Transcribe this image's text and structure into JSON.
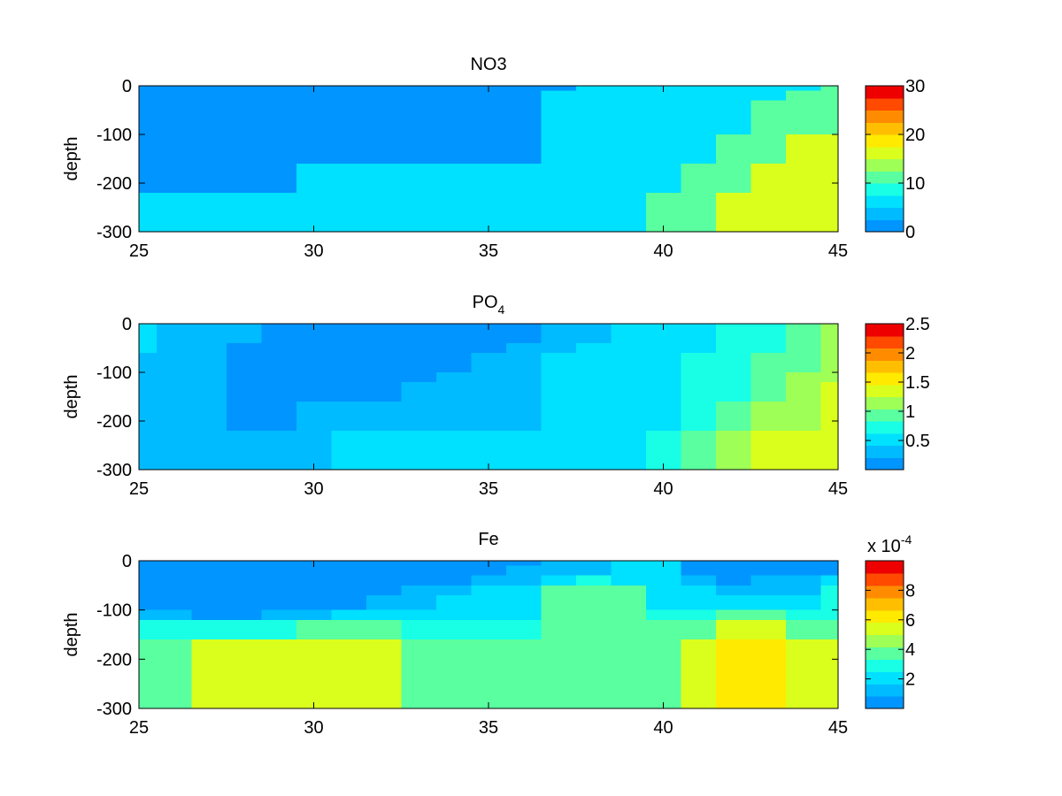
{
  "chart_data": [
    {
      "type": "heatmap",
      "title": "NO3",
      "ylabel": "depth",
      "xlabel": "",
      "xlim": [
        25,
        45
      ],
      "ylim": [
        -300,
        0
      ],
      "x_ticks": [
        25,
        30,
        35,
        40,
        45
      ],
      "y_ticks": [
        0,
        -100,
        -200,
        -300
      ],
      "x_edges": [
        25,
        25.5,
        26.5,
        27.5,
        28.5,
        29.5,
        30.5,
        31.5,
        32.5,
        33.5,
        34.5,
        35.5,
        36.5,
        37.5,
        38.5,
        39.5,
        40.5,
        41.5,
        42.5,
        43.5,
        44.5,
        45
      ],
      "y_edges": [
        0,
        -10,
        -30,
        -60,
        -100,
        -120,
        -160,
        -200,
        -220,
        -300
      ],
      "colorbar": {
        "min": 0,
        "max": 30,
        "levels": 12,
        "ticks": [
          0,
          10,
          20,
          30
        ],
        "tick_labels": [
          "0",
          "10",
          "20",
          "30"
        ],
        "scale_label": ""
      },
      "z": [
        [
          2,
          2,
          2,
          2,
          2,
          2,
          2,
          2,
          2,
          2,
          2,
          2,
          2,
          5,
          5,
          5,
          5,
          5,
          7,
          7,
          10
        ],
        [
          2,
          2,
          2,
          2,
          2,
          2,
          2,
          2,
          2,
          2,
          2,
          2,
          5,
          7,
          7,
          7,
          7,
          7,
          7,
          10,
          12
        ],
        [
          2,
          2,
          2,
          2,
          2,
          2,
          2,
          2,
          2,
          2,
          2,
          2,
          5,
          7,
          7,
          7,
          7,
          7,
          10,
          10,
          12
        ],
        [
          2,
          2,
          2,
          2,
          2,
          2,
          2,
          2,
          2,
          2,
          2,
          2,
          5,
          7,
          7,
          7,
          7,
          7,
          10,
          12,
          12
        ],
        [
          2,
          2,
          2,
          2,
          2,
          2,
          2,
          2,
          2,
          2,
          2,
          2,
          5,
          7,
          7,
          7,
          7,
          10,
          12,
          15,
          15
        ],
        [
          2,
          2,
          2,
          2,
          2,
          2,
          2,
          2,
          2,
          2,
          2,
          2,
          5,
          7,
          7,
          7,
          7,
          10,
          12,
          15,
          15
        ],
        [
          2,
          2,
          2,
          2,
          2,
          5,
          5,
          5,
          5,
          5,
          5,
          5,
          5,
          7,
          7,
          7,
          10,
          12,
          15,
          15,
          15
        ],
        [
          2,
          2,
          2,
          2,
          2,
          5,
          5,
          5,
          5,
          5,
          5,
          5,
          5,
          7,
          7,
          7,
          10,
          12,
          15,
          15,
          15
        ],
        [
          5,
          5,
          5,
          5,
          5,
          5,
          5,
          7,
          7,
          7,
          7,
          7,
          7,
          7,
          7,
          10,
          12,
          15,
          17,
          17,
          17
        ]
      ]
    },
    {
      "type": "heatmap",
      "title": "PO",
      "title_sub": "4",
      "ylabel": "depth",
      "xlabel": "",
      "xlim": [
        25,
        45
      ],
      "ylim": [
        -300,
        0
      ],
      "x_ticks": [
        25,
        30,
        35,
        40,
        45
      ],
      "y_ticks": [
        0,
        -100,
        -200,
        -300
      ],
      "x_edges": [
        25,
        25.5,
        26.5,
        27.5,
        28.5,
        29.5,
        30.5,
        31.5,
        32.5,
        33.5,
        34.5,
        35.5,
        36.5,
        37.5,
        38.5,
        39.5,
        40.5,
        41.5,
        42.5,
        43.5,
        44.5,
        45
      ],
      "y_edges": [
        0,
        -20,
        -40,
        -60,
        -100,
        -120,
        -160,
        -180,
        -220,
        -300
      ],
      "colorbar": {
        "min": 0,
        "max": 2.5,
        "levels": 12,
        "ticks": [
          0.5,
          1,
          1.5,
          2,
          2.5
        ],
        "tick_labels": [
          "0.5",
          "1",
          "1.5",
          "2",
          "2.5"
        ],
        "scale_label": ""
      },
      "z": [
        [
          0.6,
          0.4,
          0.4,
          0.4,
          0.15,
          0.15,
          0.15,
          0.15,
          0.15,
          0.15,
          0.15,
          0.15,
          0.4,
          0.4,
          0.6,
          0.6,
          0.6,
          0.8,
          0.8,
          1.0,
          1.2
        ],
        [
          0.6,
          0.4,
          0.4,
          0.4,
          0.15,
          0.15,
          0.15,
          0.15,
          0.15,
          0.15,
          0.15,
          0.15,
          0.4,
          0.4,
          0.6,
          0.6,
          0.6,
          0.8,
          0.8,
          1.0,
          1.2
        ],
        [
          0.6,
          0.4,
          0.4,
          0.15,
          0.15,
          0.15,
          0.15,
          0.15,
          0.15,
          0.15,
          0.15,
          0.4,
          0.4,
          0.6,
          0.6,
          0.6,
          0.6,
          0.8,
          0.8,
          1.0,
          1.2
        ],
        [
          0.4,
          0.4,
          0.4,
          0.15,
          0.15,
          0.15,
          0.15,
          0.15,
          0.15,
          0.15,
          0.4,
          0.4,
          0.6,
          0.6,
          0.6,
          0.6,
          0.8,
          0.8,
          1.0,
          1.0,
          1.2
        ],
        [
          0.4,
          0.4,
          0.4,
          0.15,
          0.15,
          0.15,
          0.15,
          0.15,
          0.15,
          0.4,
          0.4,
          0.4,
          0.6,
          0.6,
          0.6,
          0.6,
          0.8,
          0.8,
          1.0,
          1.2,
          1.2
        ],
        [
          0.4,
          0.4,
          0.4,
          0.15,
          0.15,
          0.15,
          0.15,
          0.15,
          0.4,
          0.4,
          0.4,
          0.4,
          0.6,
          0.6,
          0.6,
          0.6,
          0.8,
          0.8,
          1.0,
          1.2,
          1.4
        ],
        [
          0.4,
          0.4,
          0.4,
          0.15,
          0.15,
          0.4,
          0.4,
          0.4,
          0.4,
          0.4,
          0.4,
          0.4,
          0.6,
          0.6,
          0.6,
          0.6,
          0.8,
          1.0,
          1.2,
          1.2,
          1.4
        ],
        [
          0.4,
          0.4,
          0.4,
          0.15,
          0.15,
          0.4,
          0.4,
          0.4,
          0.4,
          0.4,
          0.4,
          0.4,
          0.6,
          0.6,
          0.6,
          0.6,
          0.8,
          1.0,
          1.2,
          1.2,
          1.4
        ],
        [
          0.4,
          0.4,
          0.4,
          0.4,
          0.4,
          0.4,
          0.6,
          0.6,
          0.6,
          0.6,
          0.6,
          0.6,
          0.6,
          0.6,
          0.6,
          0.8,
          1.0,
          1.2,
          1.4,
          1.4,
          1.4
        ]
      ]
    },
    {
      "type": "heatmap",
      "title": "Fe",
      "ylabel": "depth",
      "xlabel": "",
      "xlim": [
        25,
        45
      ],
      "ylim": [
        -300,
        0
      ],
      "x_ticks": [
        25,
        30,
        35,
        40,
        45
      ],
      "y_ticks": [
        0,
        -100,
        -200,
        -300
      ],
      "x_edges": [
        25,
        26.5,
        27.5,
        28.5,
        29.5,
        30.5,
        31.5,
        32.5,
        33.5,
        34.5,
        35.5,
        36.5,
        37.5,
        38.5,
        39.5,
        40.5,
        41.5,
        42.5,
        43.5,
        44.5,
        45
      ],
      "y_edges": [
        0,
        -10,
        -30,
        -50,
        -70,
        -100,
        -120,
        -160,
        -220,
        -300
      ],
      "colorbar": {
        "min": 0,
        "max": 10,
        "levels": 12,
        "ticks": [
          2,
          4,
          6,
          8
        ],
        "tick_labels": [
          "2",
          "4",
          "6",
          "8"
        ],
        "scale_label": "x 10",
        "scale_exp": "-4"
      },
      "z": [
        [
          0.5,
          0.5,
          0.5,
          0.5,
          0.5,
          0.5,
          0.5,
          0.5,
          0.5,
          0.5,
          0.5,
          1.5,
          1.5,
          2.2,
          2.2,
          0.5,
          0.5,
          0.5,
          0.5,
          0.5
        ],
        [
          0.5,
          0.5,
          0.5,
          0.5,
          0.5,
          0.5,
          0.5,
          0.5,
          0.5,
          0.5,
          1.5,
          1.5,
          1.5,
          2.2,
          2.2,
          0.5,
          0.5,
          0.5,
          0.5,
          0.5
        ],
        [
          0.5,
          0.5,
          0.5,
          0.5,
          0.5,
          0.5,
          0.5,
          0.5,
          0.5,
          1.5,
          1.5,
          2.2,
          2.5,
          2.2,
          2.2,
          1.5,
          0.5,
          1.5,
          1.5,
          2.2
        ],
        [
          0.5,
          0.5,
          0.5,
          0.5,
          0.5,
          0.5,
          0.5,
          1.5,
          1.5,
          2.2,
          2.2,
          3.5,
          3.5,
          3.5,
          2.2,
          2.2,
          1.5,
          1.5,
          1.5,
          3.0
        ],
        [
          0.5,
          0.5,
          0.5,
          0.5,
          0.5,
          0.5,
          1.5,
          1.5,
          2.2,
          2.2,
          2.2,
          3.5,
          3.5,
          3.5,
          2.2,
          2.2,
          2.2,
          2.2,
          2.2,
          3.0
        ],
        [
          1.5,
          0.5,
          0.5,
          1.5,
          1.5,
          2.2,
          2.2,
          2.2,
          2.2,
          2.2,
          2.2,
          3.5,
          3.5,
          4.0,
          3.0,
          3.0,
          4.0,
          4.0,
          3.0,
          3.0
        ],
        [
          3.0,
          3.0,
          3.0,
          3.0,
          4.0,
          4.0,
          4.0,
          3.0,
          3.0,
          3.0,
          3.0,
          3.5,
          3.5,
          4.0,
          4.0,
          4.0,
          5.0,
          5.0,
          4.0,
          4.0
        ],
        [
          4.0,
          5.0,
          5.0,
          5.0,
          5.0,
          5.0,
          5.0,
          4.0,
          4.0,
          4.0,
          4.0,
          3.5,
          3.5,
          4.0,
          4.0,
          5.0,
          6.0,
          6.0,
          5.0,
          5.0
        ],
        [
          4.0,
          5.0,
          5.0,
          5.0,
          5.0,
          5.0,
          5.0,
          4.0,
          4.0,
          4.0,
          4.0,
          3.5,
          3.5,
          4.0,
          4.0,
          5.0,
          6.0,
          6.0,
          5.0,
          5.0
        ]
      ]
    }
  ]
}
